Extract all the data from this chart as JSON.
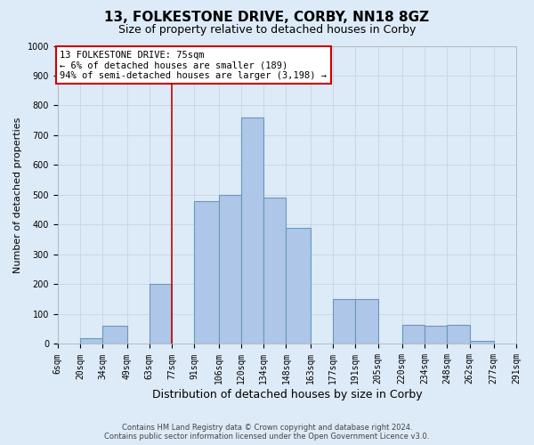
{
  "title": "13, FOLKESTONE DRIVE, CORBY, NN18 8GZ",
  "subtitle": "Size of property relative to detached houses in Corby",
  "xlabel": "Distribution of detached houses by size in Corby",
  "ylabel": "Number of detached properties",
  "footer_line1": "Contains HM Land Registry data © Crown copyright and database right 2024.",
  "footer_line2": "Contains public sector information licensed under the Open Government Licence v3.0.",
  "annotation_line1": "13 FOLKESTONE DRIVE: 75sqm",
  "annotation_line2": "← 6% of detached houses are smaller (189)",
  "annotation_line3": "94% of semi-detached houses are larger (3,198) →",
  "bin_edges": [
    6,
    20,
    34,
    49,
    63,
    77,
    91,
    106,
    120,
    134,
    148,
    163,
    177,
    191,
    205,
    220,
    234,
    248,
    262,
    277,
    291
  ],
  "bar_heights": [
    0,
    20,
    60,
    0,
    200,
    0,
    480,
    500,
    760,
    490,
    390,
    0,
    150,
    150,
    0,
    65,
    60,
    65,
    10,
    0
  ],
  "bar_color": "#aec6e8",
  "bar_edge_color": "#6699bb",
  "vline_color": "#cc0000",
  "vline_x": 77,
  "ylim": [
    0,
    1000
  ],
  "yticks": [
    0,
    100,
    200,
    300,
    400,
    500,
    600,
    700,
    800,
    900,
    1000
  ],
  "xtick_labels": [
    "6sqm",
    "20sqm",
    "34sqm",
    "49sqm",
    "63sqm",
    "77sqm",
    "91sqm",
    "106sqm",
    "120sqm",
    "134sqm",
    "148sqm",
    "163sqm",
    "177sqm",
    "191sqm",
    "205sqm",
    "220sqm",
    "234sqm",
    "248sqm",
    "262sqm",
    "277sqm",
    "291sqm"
  ],
  "annotation_box_facecolor": "#ffffff",
  "annotation_box_edgecolor": "#cc0000",
  "grid_color": "#c8d8ea",
  "bg_color": "#ddeaf7",
  "title_fontsize": 11,
  "subtitle_fontsize": 9,
  "xlabel_fontsize": 9,
  "ylabel_fontsize": 8,
  "tick_fontsize": 7,
  "annotation_fontsize": 7.5,
  "footer_fontsize": 6
}
